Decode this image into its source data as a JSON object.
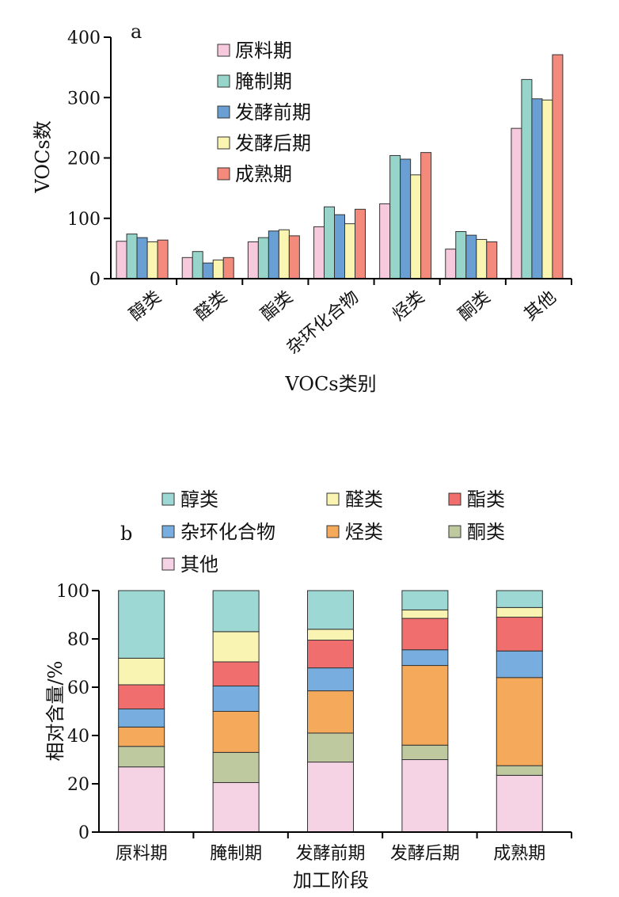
{
  "chart_data": [
    {
      "type": "bar",
      "panel_label": "a",
      "xlabel": "VOCs类别",
      "ylabel": "VOCs数",
      "ylim": [
        0,
        400
      ],
      "yticks": [
        0,
        100,
        200,
        300,
        400
      ],
      "categories": [
        "醇类",
        "醛类",
        "酯类",
        "杂环化合物",
        "烃类",
        "酮类",
        "其他"
      ],
      "legend_position": "top-center",
      "series": [
        {
          "name": "原料期",
          "color": "#f6c9dc",
          "values": [
            62,
            35,
            61,
            86,
            124,
            49,
            249
          ]
        },
        {
          "name": "腌制期",
          "color": "#97d5ca",
          "values": [
            74,
            45,
            68,
            119,
            204,
            78,
            330
          ]
        },
        {
          "name": "发酵前期",
          "color": "#6a9fd3",
          "values": [
            68,
            26,
            79,
            106,
            198,
            72,
            298
          ]
        },
        {
          "name": "发酵后期",
          "color": "#faf5b0",
          "values": [
            61,
            31,
            81,
            91,
            172,
            65,
            296
          ]
        },
        {
          "name": "成熟期",
          "color": "#f38a7b",
          "values": [
            64,
            35,
            71,
            115,
            209,
            61,
            371
          ]
        }
      ]
    },
    {
      "type": "bar",
      "stacked": true,
      "panel_label": "b",
      "xlabel": "加工阶段",
      "ylabel": "相对含量/%",
      "ylim": [
        0,
        100
      ],
      "yticks": [
        0,
        20,
        40,
        60,
        80,
        100
      ],
      "categories": [
        "原料期",
        "腌制期",
        "发酵前期",
        "发酵后期",
        "成熟期"
      ],
      "legend_position": "top",
      "series": [
        {
          "name": "其他",
          "color": "#f5d3e5",
          "values": [
            27,
            20.5,
            29,
            30,
            23.5
          ]
        },
        {
          "name": "酮类",
          "color": "#bfc9a0",
          "values": [
            8.5,
            12.5,
            12,
            6,
            4
          ]
        },
        {
          "name": "烃类",
          "color": "#f5a95a",
          "values": [
            8,
            17,
            17.5,
            33,
            36.5
          ]
        },
        {
          "name": "杂环化合物",
          "color": "#77aedf",
          "values": [
            7.5,
            10.5,
            9.5,
            6.5,
            11
          ]
        },
        {
          "name": "酯类",
          "color": "#f06e6e",
          "values": [
            10,
            10,
            11.5,
            13,
            14
          ]
        },
        {
          "name": "醛类",
          "color": "#f9f4b1",
          "values": [
            11,
            12.5,
            4.5,
            3.5,
            4
          ]
        },
        {
          "name": "醇类",
          "color": "#9dd8d4",
          "values": [
            28,
            17,
            16,
            8,
            7
          ]
        }
      ],
      "legend_order": [
        "醇类",
        "醛类",
        "酯类",
        "杂环化合物",
        "烃类",
        "酮类",
        "其他"
      ]
    }
  ]
}
